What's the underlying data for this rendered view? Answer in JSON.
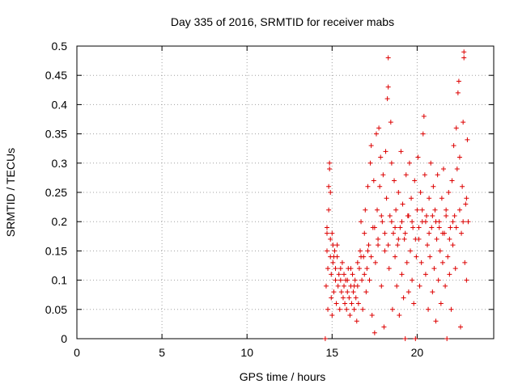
{
  "chart_data": {
    "type": "scatter",
    "title": "Day 335 of 2016, SRMTID for receiver mabs",
    "xlabel": "GPS time / hours",
    "ylabel": "SRMTID / TECUs",
    "xlim": [
      0,
      24.5
    ],
    "ylim": [
      0,
      0.5
    ],
    "x_ticks": [
      0,
      5,
      10,
      15,
      20
    ],
    "y_ticks": [
      0,
      0.05,
      0.1,
      0.15,
      0.2,
      0.25,
      0.3,
      0.35,
      0.4,
      0.45,
      0.5
    ],
    "x_tick_labels": [
      "0",
      "5",
      "10",
      "15",
      "20"
    ],
    "y_tick_labels": [
      "0",
      "0.05",
      "0.1",
      "0.15",
      "0.2",
      "0.25",
      "0.3",
      "0.35",
      "0.4",
      "0.45",
      "0.5"
    ],
    "grid": true,
    "marker": "+",
    "marker_color": "#dd0000",
    "series": [
      {
        "name": "",
        "points": [
          [
            14.6,
            0.0
          ],
          [
            14.65,
            0.09
          ],
          [
            14.7,
            0.15
          ],
          [
            14.7,
            0.19
          ],
          [
            14.75,
            0.12
          ],
          [
            14.75,
            0.05
          ],
          [
            14.8,
            0.22
          ],
          [
            14.8,
            0.26
          ],
          [
            14.85,
            0.3
          ],
          [
            14.85,
            0.29
          ],
          [
            14.9,
            0.25
          ],
          [
            14.9,
            0.14
          ],
          [
            14.95,
            0.11
          ],
          [
            14.95,
            0.07
          ],
          [
            15.0,
            0.18
          ],
          [
            15.0,
            0.04
          ],
          [
            15.05,
            0.13
          ],
          [
            15.05,
            0.16
          ],
          [
            15.1,
            0.08
          ],
          [
            15.15,
            0.15
          ],
          [
            15.2,
            0.12
          ],
          [
            15.2,
            0.1
          ],
          [
            15.25,
            0.06
          ],
          [
            15.3,
            0.14
          ],
          [
            15.35,
            0.09
          ],
          [
            15.4,
            0.11
          ],
          [
            15.45,
            0.05
          ],
          [
            15.5,
            0.1
          ],
          [
            15.55,
            0.08
          ],
          [
            15.6,
            0.13
          ],
          [
            15.65,
            0.07
          ],
          [
            15.7,
            0.09
          ],
          [
            15.75,
            0.06
          ],
          [
            15.8,
            0.1
          ],
          [
            15.85,
            0.05
          ],
          [
            15.9,
            0.08
          ],
          [
            15.95,
            0.12
          ],
          [
            16.0,
            0.07
          ],
          [
            16.05,
            0.04
          ],
          [
            16.1,
            0.09
          ],
          [
            16.15,
            0.06
          ],
          [
            16.2,
            0.11
          ],
          [
            16.25,
            0.08
          ],
          [
            16.3,
            0.05
          ],
          [
            16.35,
            0.1
          ],
          [
            16.4,
            0.07
          ],
          [
            16.45,
            0.03
          ],
          [
            16.5,
            0.09
          ],
          [
            16.55,
            0.06
          ],
          [
            16.6,
            0.12
          ],
          [
            16.65,
            0.15
          ],
          [
            16.7,
            0.2
          ],
          [
            16.75,
            0.1
          ],
          [
            16.8,
            0.05
          ],
          [
            16.85,
            0.14
          ],
          [
            16.9,
            0.18
          ],
          [
            16.95,
            0.22
          ],
          [
            17.0,
            0.08
          ],
          [
            17.05,
            0.12
          ],
          [
            17.1,
            0.26
          ],
          [
            17.15,
            0.16
          ],
          [
            17.2,
            0.1
          ],
          [
            17.25,
            0.3
          ],
          [
            17.3,
            0.33
          ],
          [
            17.35,
            0.04
          ],
          [
            17.4,
            0.19
          ],
          [
            17.45,
            0.27
          ],
          [
            17.5,
            0.01
          ],
          [
            17.55,
            0.13
          ],
          [
            17.6,
            0.35
          ],
          [
            17.65,
            0.22
          ],
          [
            17.7,
            0.17
          ],
          [
            17.75,
            0.36
          ],
          [
            17.8,
            0.26
          ],
          [
            17.85,
            0.31
          ],
          [
            17.9,
            0.09
          ],
          [
            17.95,
            0.2
          ],
          [
            18.0,
            0.28
          ],
          [
            18.05,
            0.02
          ],
          [
            18.1,
            0.15
          ],
          [
            18.15,
            0.32
          ],
          [
            18.2,
            0.24
          ],
          [
            18.25,
            0.41
          ],
          [
            18.3,
            0.48
          ],
          [
            18.3,
            0.43
          ],
          [
            18.35,
            0.12
          ],
          [
            18.4,
            0.21
          ],
          [
            18.45,
            0.37
          ],
          [
            18.5,
            0.3
          ],
          [
            18.55,
            0.05
          ],
          [
            18.6,
            0.18
          ],
          [
            18.65,
            0.27
          ],
          [
            18.7,
            0.14
          ],
          [
            18.75,
            0.22
          ],
          [
            18.8,
            0.09
          ],
          [
            18.85,
            0.16
          ],
          [
            18.9,
            0.25
          ],
          [
            18.95,
            0.04
          ],
          [
            19.0,
            0.19
          ],
          [
            19.05,
            0.32
          ],
          [
            19.1,
            0.11
          ],
          [
            19.15,
            0.23
          ],
          [
            19.2,
            0.07
          ],
          [
            19.25,
            0.17
          ],
          [
            19.3,
            0.0
          ],
          [
            19.35,
            0.28
          ],
          [
            19.4,
            0.13
          ],
          [
            19.45,
            0.21
          ],
          [
            19.5,
            0.08
          ],
          [
            19.55,
            0.3
          ],
          [
            19.6,
            0.15
          ],
          [
            19.65,
            0.24
          ],
          [
            19.7,
            0.1
          ],
          [
            19.75,
            0.19
          ],
          [
            19.8,
            0.06
          ],
          [
            19.85,
            0.27
          ],
          [
            19.9,
            0.0
          ],
          [
            19.95,
            0.14
          ],
          [
            20.0,
            0.22
          ],
          [
            20.05,
            0.31
          ],
          [
            20.1,
            0.17
          ],
          [
            20.15,
            0.09
          ],
          [
            20.2,
            0.25
          ],
          [
            20.25,
            0.13
          ],
          [
            20.3,
            0.2
          ],
          [
            20.35,
            0.35
          ],
          [
            20.4,
            0.38
          ],
          [
            20.45,
            0.28
          ],
          [
            20.5,
            0.11
          ],
          [
            20.55,
            0.21
          ],
          [
            20.6,
            0.16
          ],
          [
            20.65,
            0.05
          ],
          [
            20.7,
            0.24
          ],
          [
            20.75,
            0.14
          ],
          [
            20.8,
            0.3
          ],
          [
            20.85,
            0.19
          ],
          [
            20.9,
            0.08
          ],
          [
            20.95,
            0.26
          ],
          [
            21.0,
            0.12
          ],
          [
            21.05,
            0.22
          ],
          [
            21.1,
            0.03
          ],
          [
            21.15,
            0.17
          ],
          [
            21.2,
            0.28
          ],
          [
            21.25,
            0.1
          ],
          [
            21.3,
            0.2
          ],
          [
            21.35,
            0.15
          ],
          [
            21.4,
            0.06
          ],
          [
            21.45,
            0.24
          ],
          [
            21.5,
            0.13
          ],
          [
            21.55,
            0.29
          ],
          [
            21.6,
            0.18
          ],
          [
            21.65,
            0.09
          ],
          [
            21.7,
            0.22
          ],
          [
            21.75,
            0.0
          ],
          [
            21.8,
            0.14
          ],
          [
            21.85,
            0.25
          ],
          [
            21.9,
            0.11
          ],
          [
            21.95,
            0.19
          ],
          [
            22.0,
            0.05
          ],
          [
            22.05,
            0.27
          ],
          [
            22.1,
            0.16
          ],
          [
            22.15,
            0.33
          ],
          [
            22.2,
            0.21
          ],
          [
            22.25,
            0.12
          ],
          [
            22.3,
            0.36
          ],
          [
            22.35,
            0.29
          ],
          [
            22.4,
            0.42
          ],
          [
            22.45,
            0.44
          ],
          [
            22.5,
            0.31
          ],
          [
            22.55,
            0.02
          ],
          [
            22.6,
            0.18
          ],
          [
            22.65,
            0.26
          ],
          [
            22.7,
            0.37
          ],
          [
            22.75,
            0.49
          ],
          [
            22.75,
            0.48
          ],
          [
            22.8,
            0.13
          ],
          [
            22.85,
            0.23
          ],
          [
            22.9,
            0.1
          ],
          [
            22.95,
            0.34
          ],
          [
            23.0,
            0.2
          ],
          [
            14.7,
            0.18
          ],
          [
            14.9,
            0.17
          ],
          [
            15.1,
            0.14
          ],
          [
            15.3,
            0.16
          ],
          [
            15.5,
            0.12
          ],
          [
            15.7,
            0.11
          ],
          [
            15.9,
            0.1
          ],
          [
            16.1,
            0.12
          ],
          [
            16.3,
            0.09
          ],
          [
            16.5,
            0.13
          ],
          [
            16.7,
            0.14
          ],
          [
            16.9,
            0.11
          ],
          [
            17.1,
            0.15
          ],
          [
            17.3,
            0.14
          ],
          [
            17.5,
            0.19
          ],
          [
            17.7,
            0.16
          ],
          [
            17.9,
            0.21
          ],
          [
            18.1,
            0.18
          ],
          [
            18.3,
            0.16
          ],
          [
            18.5,
            0.2
          ],
          [
            18.7,
            0.19
          ],
          [
            18.9,
            0.17
          ],
          [
            19.1,
            0.2
          ],
          [
            19.3,
            0.18
          ],
          [
            19.5,
            0.21
          ],
          [
            19.7,
            0.2
          ],
          [
            19.9,
            0.17
          ],
          [
            20.1,
            0.19
          ],
          [
            20.3,
            0.22
          ],
          [
            20.5,
            0.2
          ],
          [
            20.7,
            0.18
          ],
          [
            20.9,
            0.21
          ],
          [
            21.1,
            0.2
          ],
          [
            21.3,
            0.19
          ],
          [
            21.5,
            0.18
          ],
          [
            21.7,
            0.21
          ],
          [
            21.9,
            0.17
          ],
          [
            22.1,
            0.2
          ],
          [
            22.3,
            0.19
          ],
          [
            22.5,
            0.22
          ],
          [
            22.7,
            0.2
          ],
          [
            22.9,
            0.24
          ]
        ]
      }
    ]
  }
}
